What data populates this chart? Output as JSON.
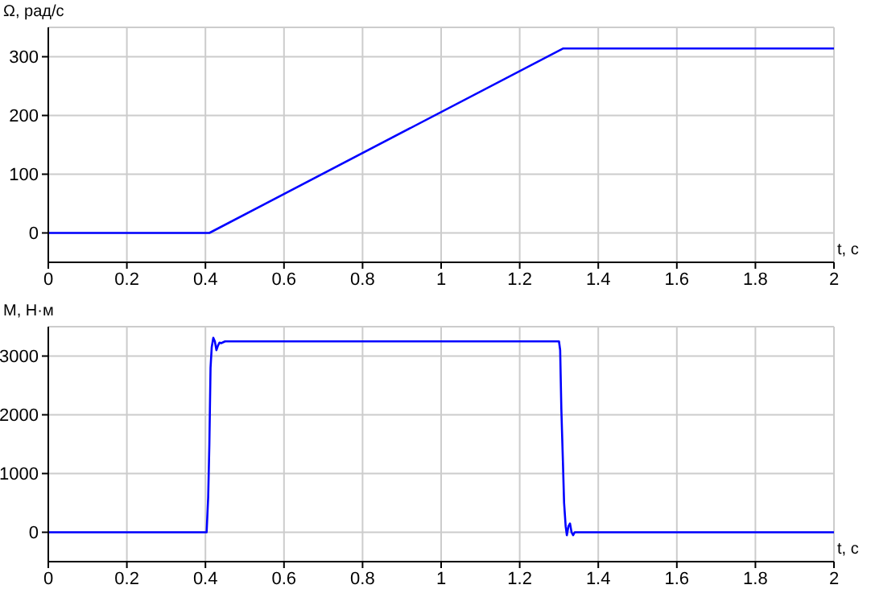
{
  "chart_data": [
    {
      "type": "line",
      "ylabel": "Ω, рад/с",
      "xlabel": "t, c",
      "xlim": [
        0,
        2
      ],
      "xticks": [
        0,
        0.2,
        0.4,
        0.6,
        0.8,
        1,
        1.2,
        1.4,
        1.6,
        1.8,
        2
      ],
      "ylim": [
        -50,
        350
      ],
      "yticks": [
        0,
        100,
        200,
        300
      ],
      "grid": true,
      "series": [
        {
          "color": "#0000ff",
          "x": [
            0,
            0.41,
            1.31,
            2
          ],
          "values": [
            0,
            0,
            314,
            314
          ]
        }
      ]
    },
    {
      "type": "line",
      "ylabel": "M, Н·м",
      "xlabel": "t, c",
      "xlim": [
        0,
        2
      ],
      "xticks": [
        0,
        0.2,
        0.4,
        0.6,
        0.8,
        1,
        1.2,
        1.4,
        1.6,
        1.8,
        2
      ],
      "ylim": [
        -500,
        3500
      ],
      "yticks": [
        0,
        1000,
        2000,
        3000
      ],
      "grid": true,
      "series": [
        {
          "color": "#0000ff",
          "x": [
            0,
            0.403,
            0.407,
            0.41,
            0.413,
            0.416,
            0.42,
            0.424,
            0.428,
            0.432,
            0.436,
            0.44,
            0.45,
            0.46,
            1.3,
            1.303,
            1.306,
            1.31,
            1.313,
            1.317,
            1.32,
            1.324,
            1.328,
            1.332,
            1.336,
            1.34,
            1.35,
            2
          ],
          "values": [
            0,
            0,
            600,
            1500,
            2800,
            3150,
            3310,
            3250,
            3100,
            3180,
            3230,
            3220,
            3250,
            3250,
            3250,
            3100,
            2100,
            1200,
            500,
            100,
            -50,
            100,
            150,
            0,
            -50,
            0,
            0,
            0
          ]
        }
      ]
    }
  ]
}
